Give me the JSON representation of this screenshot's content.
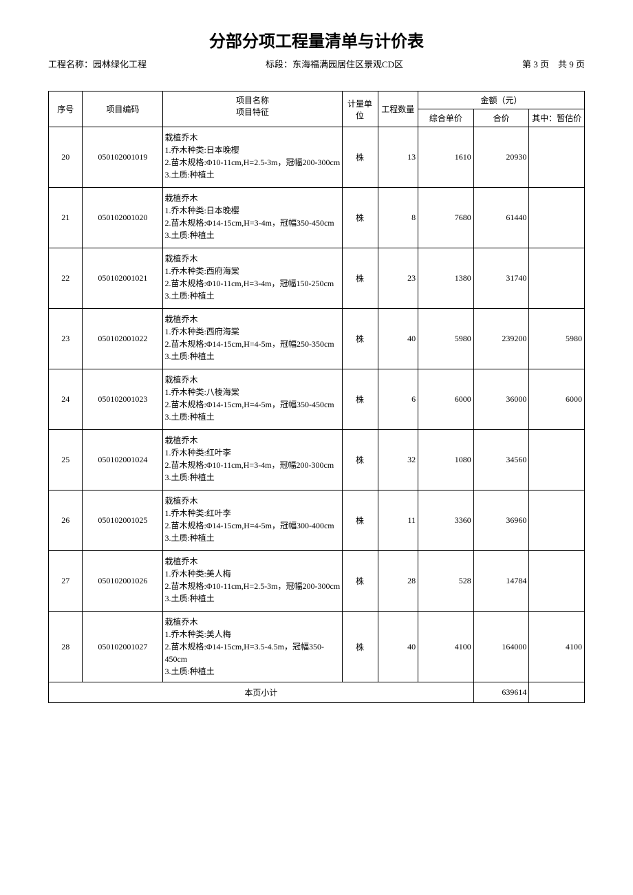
{
  "title": "分部分项工程量清单与计价表",
  "header": {
    "project_label": "工程名称：",
    "project_name": "园林绿化工程",
    "section_label": "标段：",
    "section_name": "东海福满园居住区景观CD区",
    "page_label_prefix": "第 ",
    "page_current": "3",
    "page_label_mid": " 页　共 ",
    "page_total": "9",
    "page_label_suffix": " 页"
  },
  "columns": {
    "seq": "序号",
    "code": "项目编码",
    "name": "项目名称\n项目特征",
    "unit": "计量单位",
    "qty": "工程数量",
    "amount_group": "金额（元）",
    "unit_price": "综合单价",
    "total_price": "合价",
    "est_price": "其中：暂估价"
  },
  "rows": [
    {
      "seq": "20",
      "code": "050102001019",
      "name": "栽植乔木\n1.乔木种类:日本晚樱\n2.苗木规格:Φ10-11cm,H=2.5-3m，冠幅200-300cm\n3.土质:种植土",
      "unit": "株",
      "qty": "13",
      "unit_price": "1610",
      "total_price": "20930",
      "est_price": ""
    },
    {
      "seq": "21",
      "code": "050102001020",
      "name": "栽植乔木\n1.乔木种类:日本晚樱\n2.苗木规格:Φ14-15cm,H=3-4m，冠幅350-450cm\n3.土质:种植土",
      "unit": "株",
      "qty": "8",
      "unit_price": "7680",
      "total_price": "61440",
      "est_price": ""
    },
    {
      "seq": "22",
      "code": "050102001021",
      "name": "栽植乔木\n1.乔木种类:西府海棠\n2.苗木规格:Φ10-11cm,H=3-4m，冠幅150-250cm\n3.土质:种植土",
      "unit": "株",
      "qty": "23",
      "unit_price": "1380",
      "total_price": "31740",
      "est_price": ""
    },
    {
      "seq": "23",
      "code": "050102001022",
      "name": "栽植乔木\n1.乔木种类:西府海棠\n2.苗木规格:Φ14-15cm,H=4-5m，冠幅250-350cm\n3.土质:种植土",
      "unit": "株",
      "qty": "40",
      "unit_price": "5980",
      "total_price": "239200",
      "est_price": "5980"
    },
    {
      "seq": "24",
      "code": "050102001023",
      "name": "栽植乔木\n1.乔木种类:八棱海棠\n2.苗木规格:Φ14-15cm,H=4-5m，冠幅350-450cm\n3.土质:种植土",
      "unit": "株",
      "qty": "6",
      "unit_price": "6000",
      "total_price": "36000",
      "est_price": "6000"
    },
    {
      "seq": "25",
      "code": "050102001024",
      "name": "栽植乔木\n1.乔木种类:红叶李\n2.苗木规格:Φ10-11cm,H=3-4m，冠幅200-300cm\n3.土质:种植土",
      "unit": "株",
      "qty": "32",
      "unit_price": "1080",
      "total_price": "34560",
      "est_price": ""
    },
    {
      "seq": "26",
      "code": "050102001025",
      "name": "栽植乔木\n1.乔木种类:红叶李\n2.苗木规格:Φ14-15cm,H=4-5m，冠幅300-400cm\n3.土质:种植土",
      "unit": "株",
      "qty": "11",
      "unit_price": "3360",
      "total_price": "36960",
      "est_price": ""
    },
    {
      "seq": "27",
      "code": "050102001026",
      "name": "栽植乔木\n1.乔木种类:美人梅\n2.苗木规格:Φ10-11cm,H=2.5-3m，冠幅200-300cm\n3.土质:种植土",
      "unit": "株",
      "qty": "28",
      "unit_price": "528",
      "total_price": "14784",
      "est_price": ""
    },
    {
      "seq": "28",
      "code": "050102001027",
      "name": "栽植乔木\n1.乔木种类:美人梅\n2.苗木规格:Φ14-15cm,H=3.5-4.5m，冠幅350-450cm\n3.土质:种植土",
      "unit": "株",
      "qty": "40",
      "unit_price": "4100",
      "total_price": "164000",
      "est_price": "4100"
    }
  ],
  "subtotal": {
    "label": "本页小计",
    "value": "639614"
  }
}
